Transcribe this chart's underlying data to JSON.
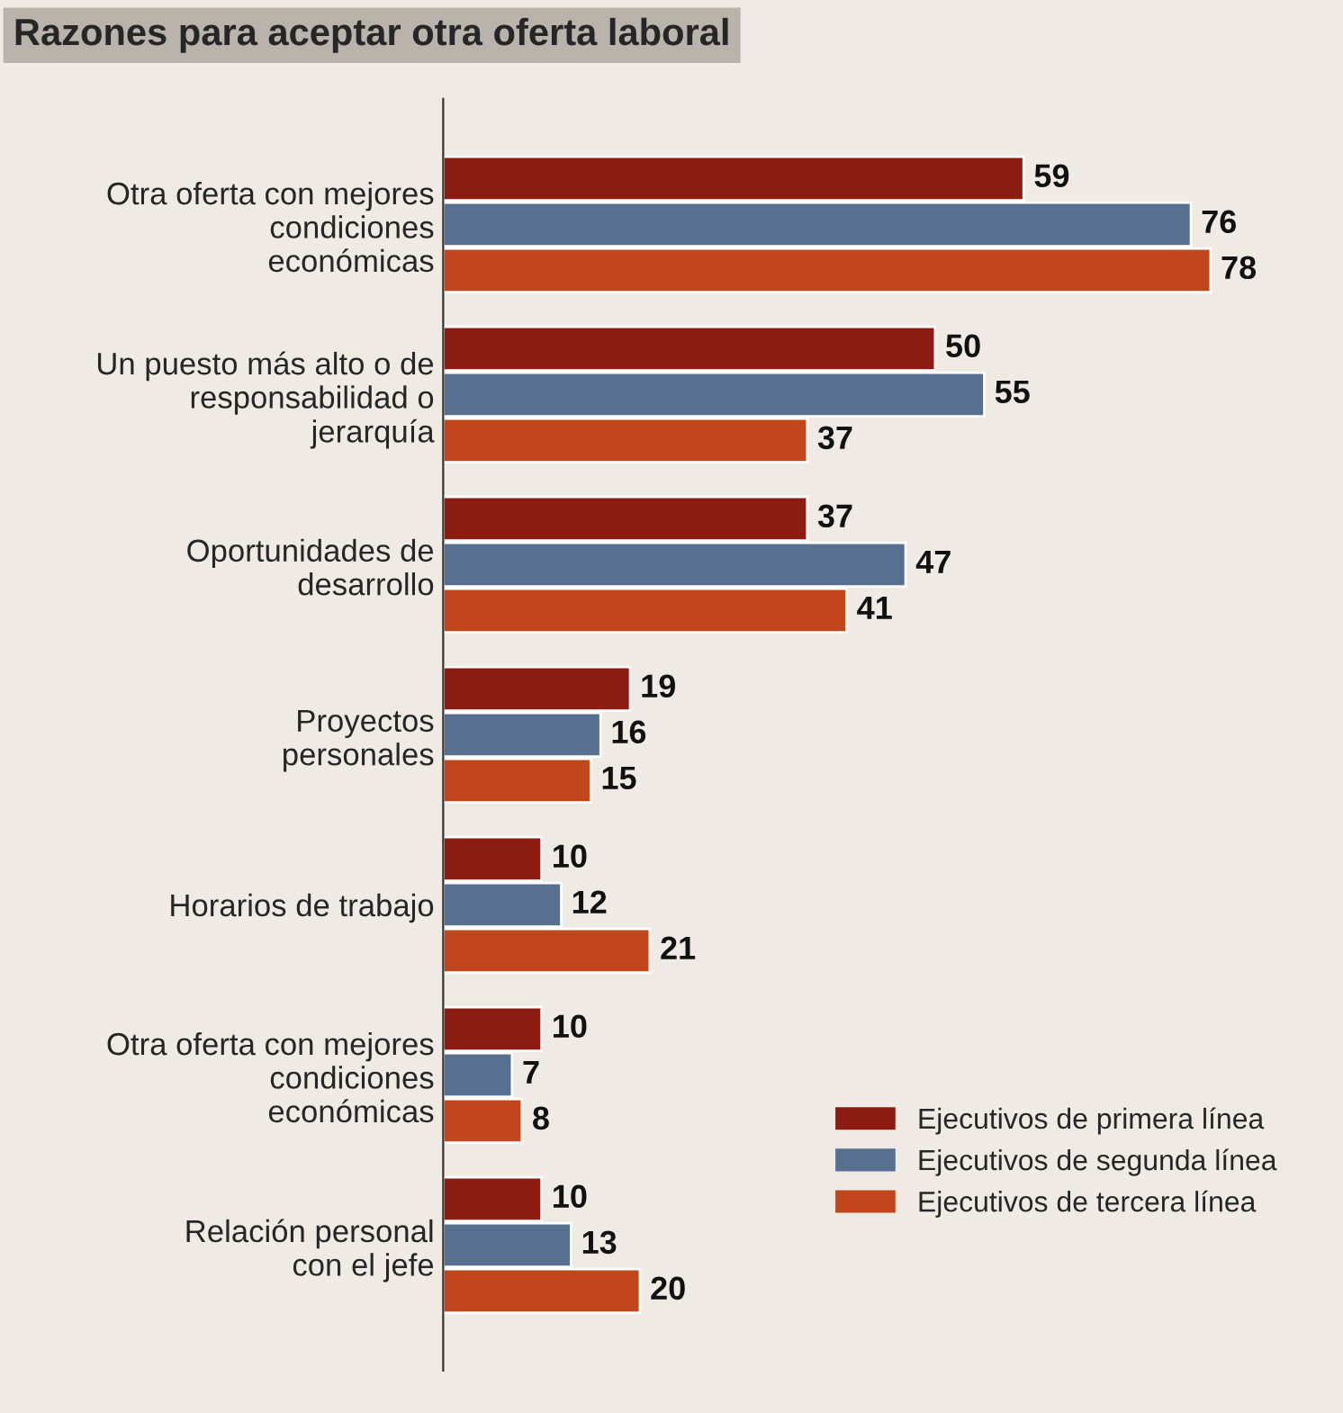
{
  "chart_data": {
    "type": "bar",
    "orientation": "horizontal",
    "title": "Razones para aceptar otra oferta laboral",
    "categories": [
      "Otra oferta con mejores\ncondiciones\neconómicas",
      "Un puesto más alto o de\nresponsabilidad o\njerarquía",
      "Oportunidades de\ndesarrollo",
      "Proyectos\npersonales",
      "Horarios de trabajo",
      "Otra oferta con mejores\ncondiciones\neconómicas",
      "Relación personal\ncon el jefe"
    ],
    "series": [
      {
        "name": "Ejecutivos de primera línea",
        "color": "#8c1c12",
        "values": [
          59,
          50,
          37,
          19,
          10,
          10,
          10
        ]
      },
      {
        "name": "Ejecutivos de segunda línea",
        "color": "#57708f",
        "values": [
          76,
          55,
          47,
          16,
          12,
          7,
          13
        ]
      },
      {
        "name": "Ejecutivos de tercera línea",
        "color": "#c2461c",
        "values": [
          78,
          37,
          41,
          15,
          21,
          8,
          20
        ]
      }
    ],
    "data_labels": true,
    "legend": "bottom right",
    "grid": false
  }
}
